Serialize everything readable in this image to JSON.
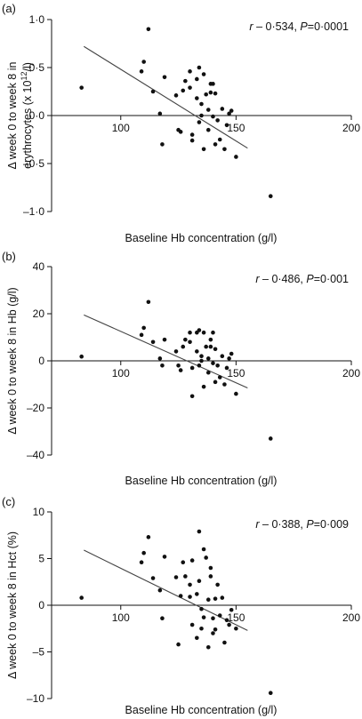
{
  "chart_data": [
    {
      "type": "scatter",
      "panel_label": "(a)",
      "stat": {
        "r_label": "r",
        "r_value": "– 0·534",
        "p_label": "P",
        "p_value": "0·0001"
      },
      "xlabel": "Baseline Hb concentration (g/l)",
      "ylabel_line1": "Δ week 0 to week 8 in",
      "ylabel_line2": "erythrocytes (x 10",
      "ylabel_sup": "12",
      "ylabel_tail": "/l)",
      "xlim": [
        70,
        200
      ],
      "ylim": [
        -1.0,
        1.0
      ],
      "xticks": [
        100,
        150,
        200
      ],
      "xtick_labels": [
        "100",
        "150",
        "200"
      ],
      "yticks": [
        1.0,
        0.5,
        0.0,
        -0.5,
        -1.0
      ],
      "ytick_labels": [
        "1·0",
        "0·5",
        "0·0",
        "–0·5",
        "–1·0"
      ],
      "grid": false,
      "regression": {
        "x": [
          84,
          155
        ],
        "y": [
          0.72,
          -0.34
        ]
      },
      "points": [
        {
          "x": 83,
          "y": 0.29
        },
        {
          "x": 112,
          "y": 0.9
        },
        {
          "x": 110,
          "y": 0.56
        },
        {
          "x": 109,
          "y": 0.46
        },
        {
          "x": 114,
          "y": 0.25
        },
        {
          "x": 117,
          "y": 0.02
        },
        {
          "x": 119,
          "y": 0.4
        },
        {
          "x": 118,
          "y": -0.3
        },
        {
          "x": 124,
          "y": 0.21
        },
        {
          "x": 125,
          "y": -0.15
        },
        {
          "x": 126,
          "y": -0.17
        },
        {
          "x": 127,
          "y": 0.26
        },
        {
          "x": 128,
          "y": 0.36
        },
        {
          "x": 130,
          "y": 0.46
        },
        {
          "x": 130,
          "y": 0.29
        },
        {
          "x": 131,
          "y": -0.2
        },
        {
          "x": 131,
          "y": -0.26
        },
        {
          "x": 133,
          "y": 0.38
        },
        {
          "x": 133,
          "y": 0.18
        },
        {
          "x": 134,
          "y": 0.5
        },
        {
          "x": 134,
          "y": -0.07
        },
        {
          "x": 135,
          "y": 0.12
        },
        {
          "x": 135,
          "y": 0.0
        },
        {
          "x": 136,
          "y": 0.43
        },
        {
          "x": 136,
          "y": -0.35
        },
        {
          "x": 137,
          "y": 0.22
        },
        {
          "x": 138,
          "y": 0.06
        },
        {
          "x": 138,
          "y": -0.15
        },
        {
          "x": 139,
          "y": 0.33
        },
        {
          "x": 139,
          "y": 0.24
        },
        {
          "x": 140,
          "y": 0.33
        },
        {
          "x": 140,
          "y": -0.01
        },
        {
          "x": 141,
          "y": 0.23
        },
        {
          "x": 141,
          "y": -0.3
        },
        {
          "x": 142,
          "y": -0.05
        },
        {
          "x": 143,
          "y": -0.25
        },
        {
          "x": 144,
          "y": 0.07
        },
        {
          "x": 145,
          "y": -0.35
        },
        {
          "x": 146,
          "y": -0.1
        },
        {
          "x": 147,
          "y": 0.02
        },
        {
          "x": 148,
          "y": 0.05
        },
        {
          "x": 150,
          "y": -0.43
        },
        {
          "x": 165,
          "y": -0.84
        }
      ]
    },
    {
      "type": "scatter",
      "panel_label": "(b)",
      "stat": {
        "r_label": "r",
        "r_value": "– 0·486",
        "p_label": "P",
        "p_value": "0·001"
      },
      "xlabel": "Baseline Hb concentration (g/l)",
      "ylabel_line1": "Δ week 0 to week 8 in Hb (g/l)",
      "xlim": [
        70,
        200
      ],
      "ylim": [
        -40,
        40
      ],
      "xticks": [
        100,
        150,
        200
      ],
      "xtick_labels": [
        "100",
        "150",
        "200"
      ],
      "yticks": [
        40,
        20,
        0,
        -20,
        -40
      ],
      "ytick_labels": [
        "40",
        "20",
        "0",
        "–20",
        "–40"
      ],
      "grid": false,
      "regression": {
        "x": [
          84,
          155
        ],
        "y": [
          19.5,
          -11.5
        ]
      },
      "points": [
        {
          "x": 83,
          "y": 1.8
        },
        {
          "x": 112,
          "y": 25
        },
        {
          "x": 110,
          "y": 14
        },
        {
          "x": 109,
          "y": 11
        },
        {
          "x": 114,
          "y": 8
        },
        {
          "x": 117,
          "y": 1
        },
        {
          "x": 119,
          "y": 9
        },
        {
          "x": 118,
          "y": -2
        },
        {
          "x": 124,
          "y": 4
        },
        {
          "x": 125,
          "y": -2
        },
        {
          "x": 126,
          "y": -4
        },
        {
          "x": 127,
          "y": 6
        },
        {
          "x": 128,
          "y": 9
        },
        {
          "x": 130,
          "y": 12
        },
        {
          "x": 130,
          "y": 8
        },
        {
          "x": 131,
          "y": -3
        },
        {
          "x": 131,
          "y": -15
        },
        {
          "x": 133,
          "y": 12
        },
        {
          "x": 133,
          "y": 4
        },
        {
          "x": 134,
          "y": 13
        },
        {
          "x": 134,
          "y": -2
        },
        {
          "x": 135,
          "y": 2
        },
        {
          "x": 135,
          "y": 0
        },
        {
          "x": 136,
          "y": 12
        },
        {
          "x": 136,
          "y": -11
        },
        {
          "x": 137,
          "y": 6
        },
        {
          "x": 138,
          "y": 1
        },
        {
          "x": 138,
          "y": -5
        },
        {
          "x": 139,
          "y": 9
        },
        {
          "x": 139,
          "y": 6
        },
        {
          "x": 140,
          "y": 12
        },
        {
          "x": 140,
          "y": -1
        },
        {
          "x": 141,
          "y": 5
        },
        {
          "x": 141,
          "y": -9
        },
        {
          "x": 142,
          "y": -2
        },
        {
          "x": 143,
          "y": -7
        },
        {
          "x": 144,
          "y": 2
        },
        {
          "x": 145,
          "y": -10
        },
        {
          "x": 146,
          "y": -3
        },
        {
          "x": 147,
          "y": 1
        },
        {
          "x": 148,
          "y": 3
        },
        {
          "x": 150,
          "y": -14
        },
        {
          "x": 165,
          "y": -33
        }
      ]
    },
    {
      "type": "scatter",
      "panel_label": "(c)",
      "stat": {
        "r_label": "r",
        "r_value": "– 0·388",
        "p_label": "P",
        "p_value": "0·009"
      },
      "xlabel": "Baseline Hb concentration (g/l)",
      "ylabel_line1": "Δ week 0 to week 8 in Hct (%)",
      "xlim": [
        70,
        200
      ],
      "ylim": [
        -10,
        10
      ],
      "xticks": [
        100,
        150,
        200
      ],
      "xtick_labels": [
        "100",
        "150",
        "200"
      ],
      "yticks": [
        10,
        5,
        0,
        -5,
        -10
      ],
      "ytick_labels": [
        "10",
        "5",
        "0",
        "–5",
        "–10"
      ],
      "grid": false,
      "regression": {
        "x": [
          84,
          155
        ],
        "y": [
          5.9,
          -2.7
        ]
      },
      "points": [
        {
          "x": 83,
          "y": 0.8
        },
        {
          "x": 112,
          "y": 7.3
        },
        {
          "x": 110,
          "y": 5.6
        },
        {
          "x": 109,
          "y": 4.6
        },
        {
          "x": 114,
          "y": 2.9
        },
        {
          "x": 117,
          "y": 1.6
        },
        {
          "x": 119,
          "y": 5.2
        },
        {
          "x": 118,
          "y": -1.4
        },
        {
          "x": 124,
          "y": 3.0
        },
        {
          "x": 125,
          "y": -4.2
        },
        {
          "x": 126,
          "y": 1.0
        },
        {
          "x": 127,
          "y": 4.6
        },
        {
          "x": 128,
          "y": 3.1
        },
        {
          "x": 130,
          "y": 0.9
        },
        {
          "x": 130,
          "y": 2.2
        },
        {
          "x": 131,
          "y": 4.8
        },
        {
          "x": 131,
          "y": -2.1
        },
        {
          "x": 133,
          "y": 1.2
        },
        {
          "x": 133,
          "y": -3.5
        },
        {
          "x": 134,
          "y": 7.9
        },
        {
          "x": 134,
          "y": 2.6
        },
        {
          "x": 135,
          "y": -0.4
        },
        {
          "x": 135,
          "y": -2.5
        },
        {
          "x": 136,
          "y": 6.0
        },
        {
          "x": 136,
          "y": -1.3
        },
        {
          "x": 137,
          "y": 5.1
        },
        {
          "x": 138,
          "y": 0.6
        },
        {
          "x": 138,
          "y": -4.5
        },
        {
          "x": 139,
          "y": 4.0
        },
        {
          "x": 139,
          "y": 3.1
        },
        {
          "x": 140,
          "y": -1.4
        },
        {
          "x": 140,
          "y": -3.0
        },
        {
          "x": 141,
          "y": 0.7
        },
        {
          "x": 141,
          "y": -2.6
        },
        {
          "x": 142,
          "y": 2.2
        },
        {
          "x": 143,
          "y": -1.1
        },
        {
          "x": 144,
          "y": 0.8
        },
        {
          "x": 145,
          "y": -4.0
        },
        {
          "x": 146,
          "y": -1.6
        },
        {
          "x": 147,
          "y": -2.1
        },
        {
          "x": 148,
          "y": -0.5
        },
        {
          "x": 150,
          "y": -2.5
        },
        {
          "x": 165,
          "y": -9.4
        }
      ]
    }
  ]
}
